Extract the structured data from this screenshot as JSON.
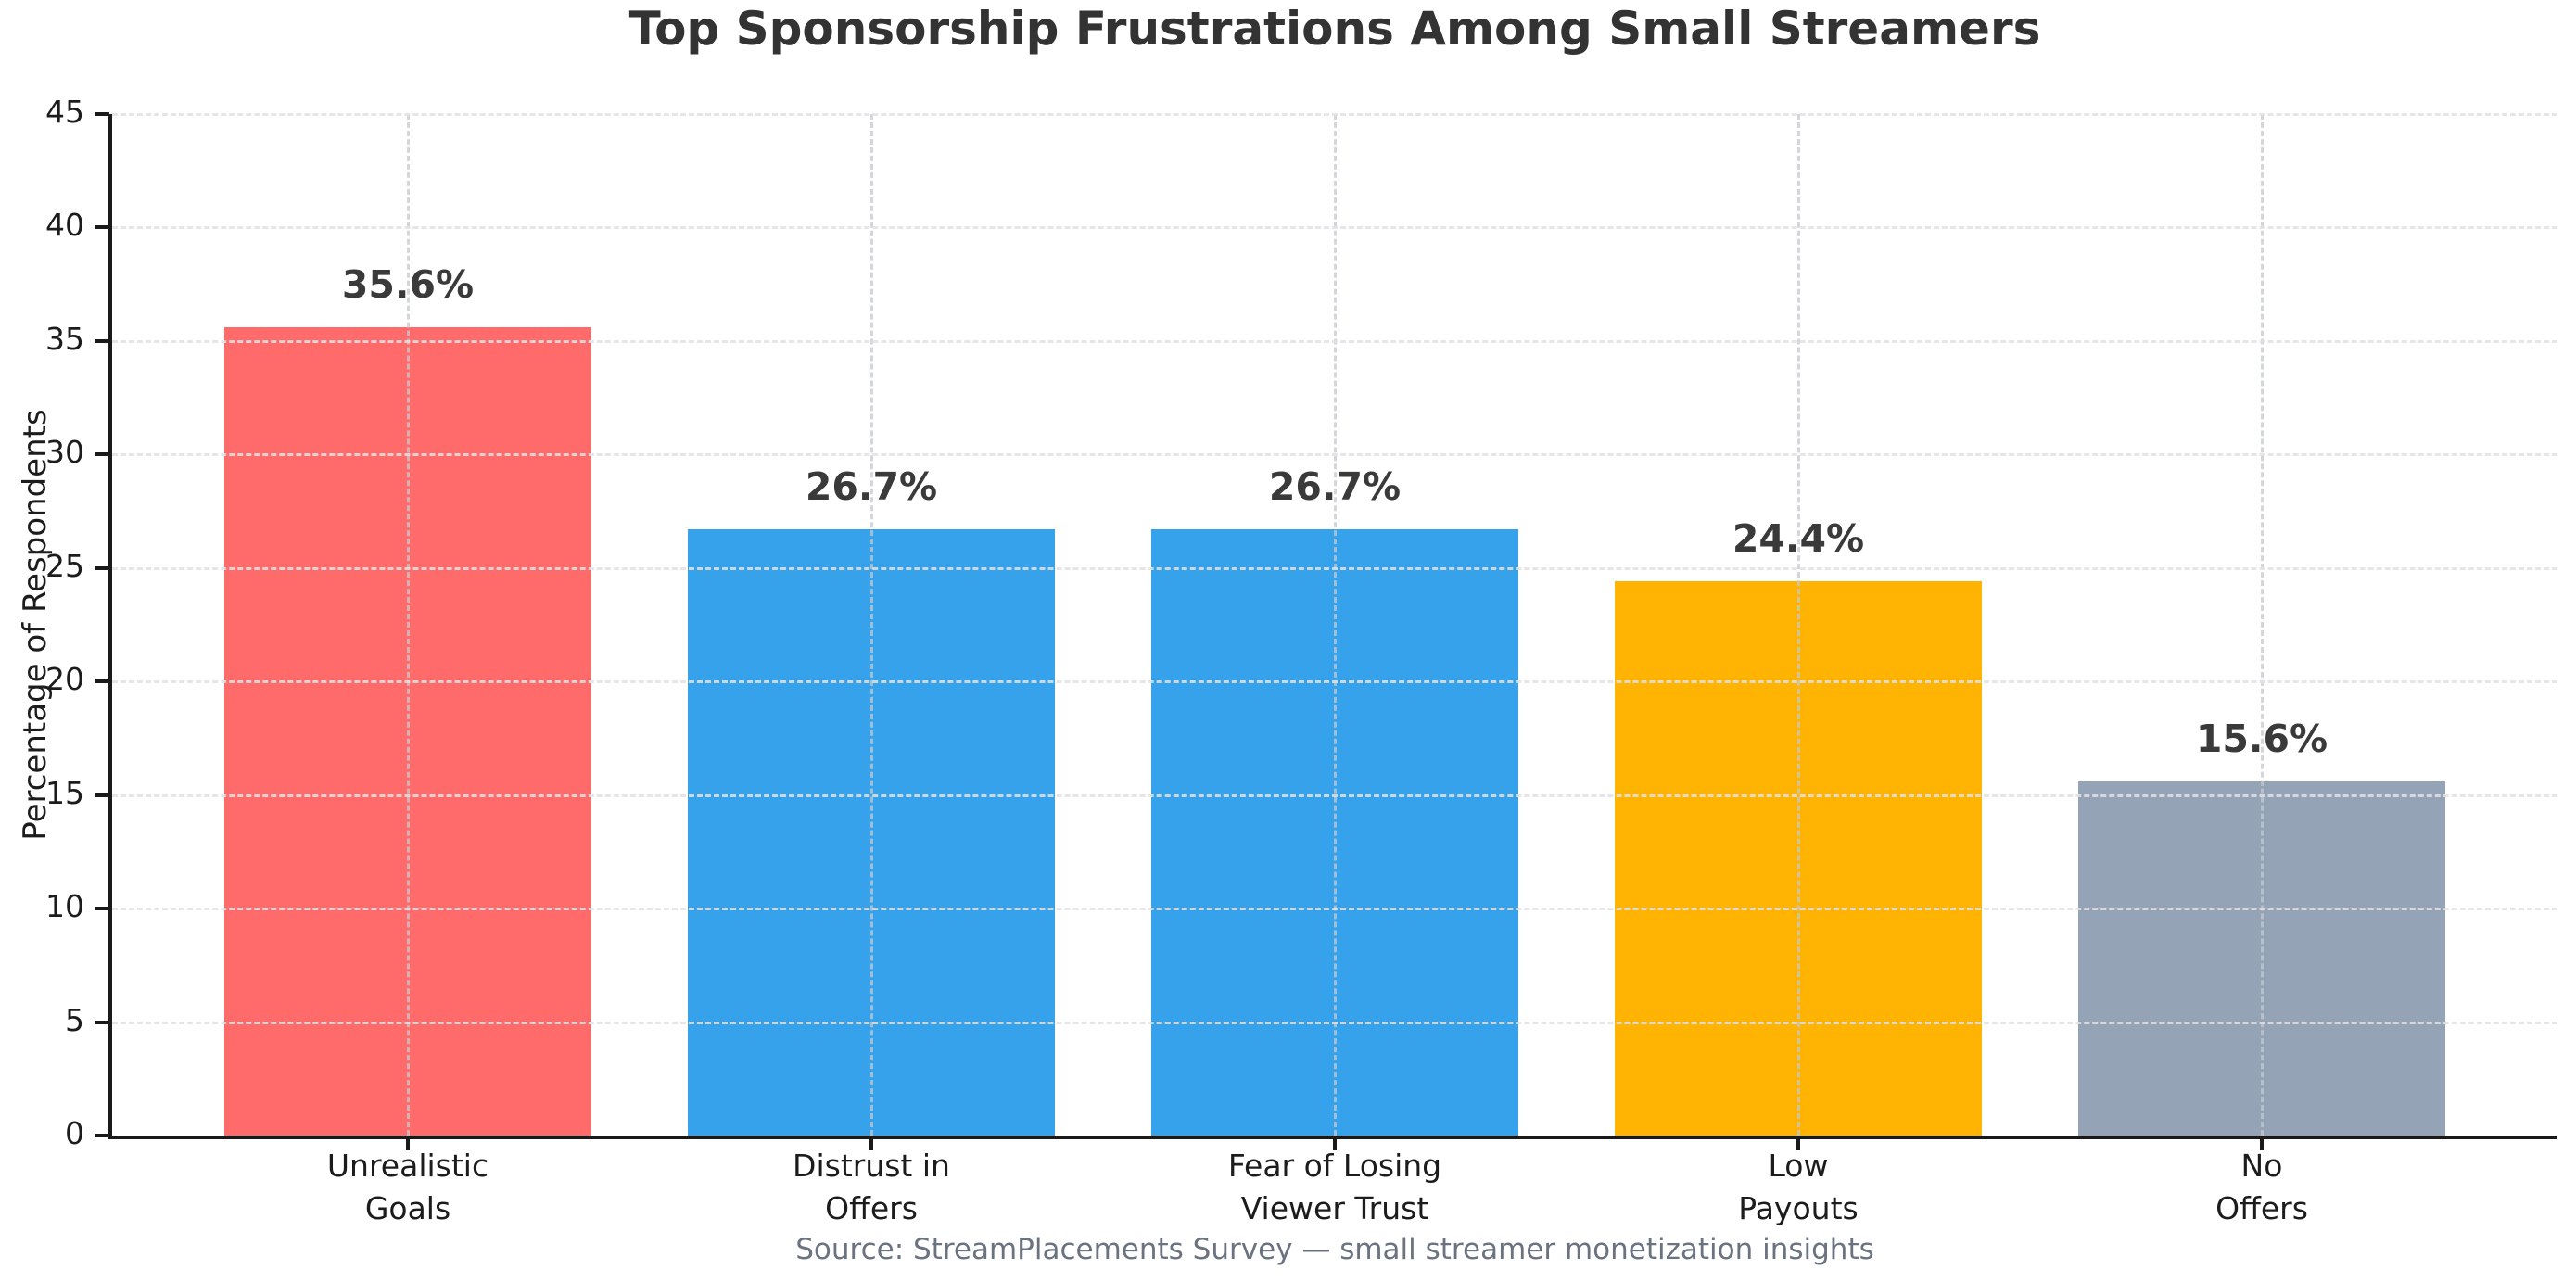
{
  "chart_data": {
    "type": "bar",
    "title": "Top Sponsorship Frustrations Among Small Streamers",
    "ylabel": "Percentage of Respondents",
    "xlabel": "",
    "ylim": [
      0,
      45
    ],
    "ytick_step": 5,
    "grid": true,
    "legend": false,
    "categories": [
      "Unrealistic\nGoals",
      "Distrust in\nOffers",
      "Fear of Losing\nViewer Trust",
      "Low\nPayouts",
      "No\nOffers"
    ],
    "values": [
      35.6,
      26.7,
      26.7,
      24.4,
      15.6
    ],
    "value_labels": [
      "35.6%",
      "26.7%",
      "26.7%",
      "24.4%",
      "15.6%"
    ],
    "bar_colors": [
      "#FF6B6B",
      "#36A2EB",
      "#36A2EB",
      "#FFB302",
      "#95A3B7"
    ],
    "source": "Source: StreamPlacements Survey — small streamer monetization insights"
  },
  "style": {
    "title_color": "#333333",
    "tick_label_color": "#1c1c1c",
    "value_label_color": "#3a3a3a",
    "source_color": "#6B7280",
    "axis_color": "#1a1a1a",
    "background": "#ffffff"
  }
}
